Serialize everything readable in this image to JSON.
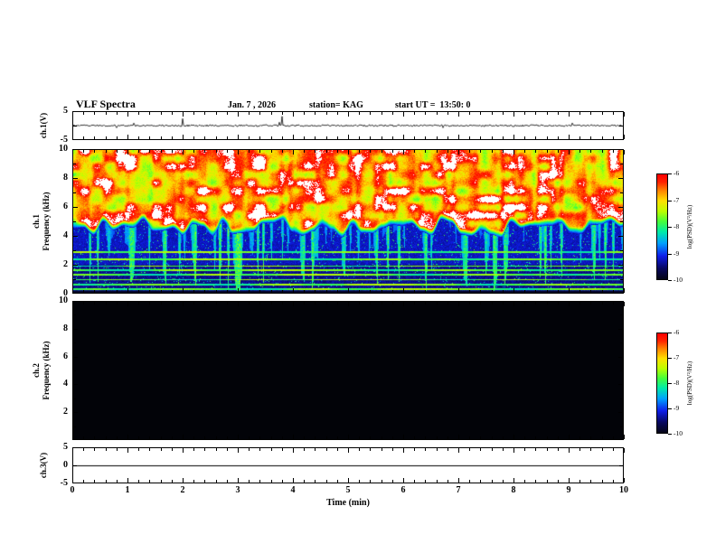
{
  "header": {
    "title": "VLF Spectra",
    "date": "Jan. 7 , 2026",
    "station": "station= KAG",
    "start_ut": "start UT =  13:50: 0"
  },
  "xaxis": {
    "label": "Time (min)",
    "tick_labels": [
      "0",
      "1",
      "2",
      "3",
      "4",
      "5",
      "6",
      "7",
      "8",
      "9",
      "10"
    ]
  },
  "panels": {
    "ch1_wave": {
      "ylabel": "ch.1(V)",
      "ytick_labels": [
        "5",
        "-5"
      ]
    },
    "ch1_spec": {
      "ylabel_channel": "ch.1",
      "ylabel_axis": "Frequency (kHz)",
      "ytick_labels": [
        "10",
        "8",
        "6",
        "4",
        "2",
        "0"
      ]
    },
    "ch2_spec": {
      "ylabel_channel": "ch.2",
      "ylabel_axis": "Frequency (kHz)",
      "ytick_labels": [
        "10",
        "8",
        "6",
        "4",
        "2"
      ]
    },
    "ch3_wave": {
      "ylabel": "ch.3(V)",
      "ytick_labels": [
        "5",
        "0",
        "-5"
      ]
    }
  },
  "colorbars": {
    "label": "log(PSD)(V²/Hz)",
    "tick_labels": [
      "-6",
      "-7",
      "-8",
      "-9",
      "-10"
    ]
  },
  "chart_data": [
    {
      "type": "line",
      "title": "ch.1 voltage waveform",
      "ylabel": "ch.1(V)",
      "xlabel": "Time (min)",
      "xlim": [
        0,
        10
      ],
      "ylim": [
        -5,
        5
      ],
      "description": "Low-amplitude noise centred on 0 V with frequent narrow impulsive spikes up to about ±3 V throughout the 10-minute record."
    },
    {
      "type": "heatmap",
      "title": "ch.1 spectrogram",
      "ylabel": "Frequency (kHz)",
      "xlabel": "Time (min)",
      "xlim": [
        0,
        10
      ],
      "ylim": [
        0,
        10
      ],
      "zlabel": "log(PSD)(V²/Hz)",
      "zlim": [
        -10,
        -6
      ],
      "features": {
        "strong_band_khz": [
          4.5,
          10
        ],
        "strong_band_level": -6.2,
        "saturated_white_patches": true,
        "weak_band_khz": [
          0,
          4.5
        ],
        "weak_band_level": -9.2,
        "vertical_sferic_streaks": true,
        "harmonic_lines_khz": [
          0.3,
          0.6,
          0.95,
          1.3,
          1.6,
          1.9,
          2.4,
          2.9
        ],
        "harmonic_line_level": -8.0,
        "black_band_below_khz": 0.18
      },
      "description": "Continuous intense broadband emission (red/white, about -6) from roughly 4.5 kHz up to 10 kHz over the whole 10 minutes; below ~4.5 kHz mostly weak (blue, about -9) with dense green vertical sferic streaks and narrow horizontal harmonic lines below 3 kHz."
    },
    {
      "type": "heatmap",
      "title": "ch.2 spectrogram",
      "ylabel": "Frequency (kHz)",
      "xlabel": "Time (min)",
      "xlim": [
        0,
        10
      ],
      "ylim": [
        0,
        10
      ],
      "zlabel": "log(PSD)(V²/Hz)",
      "zlim": [
        -10,
        -6
      ],
      "features": {
        "uniform_level": -10
      },
      "description": "No signal: the entire panel sits at or below the -10 colour floor and renders black."
    },
    {
      "type": "line",
      "title": "ch.3 voltage waveform",
      "ylabel": "ch.3(V)",
      "xlabel": "Time (min)",
      "xlim": [
        0,
        10
      ],
      "ylim": [
        -5,
        5
      ],
      "description": "Perfectly flat trace at 0 V for the entire 10 minutes."
    }
  ]
}
